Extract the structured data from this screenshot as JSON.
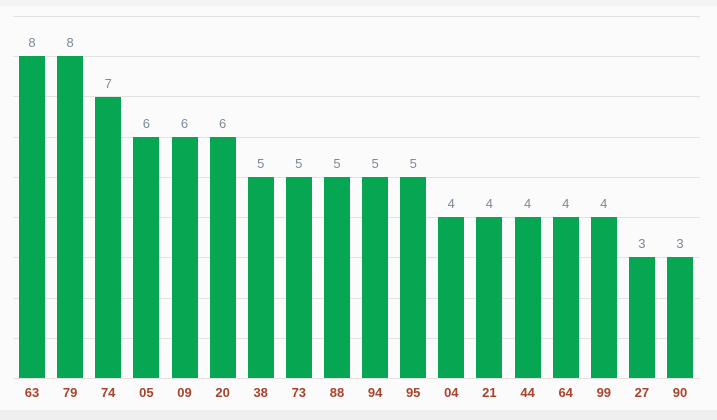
{
  "chart": {
    "bar_color": "#06a652",
    "value_label_color": "#7d8a98",
    "category_label_color": "#a8432d",
    "gridline_color": "#e2e2e2",
    "plot_background_color": "#fbfbfb",
    "outer_background_color": "#f3f3f3"
  },
  "chart_data": {
    "type": "bar",
    "categories": [
      "63",
      "79",
      "74",
      "05",
      "09",
      "20",
      "38",
      "73",
      "88",
      "94",
      "95",
      "04",
      "21",
      "44",
      "64",
      "99",
      "27",
      "90"
    ],
    "values": [
      8,
      8,
      7,
      6,
      6,
      6,
      5,
      5,
      5,
      5,
      5,
      4,
      4,
      4,
      4,
      4,
      3,
      3
    ],
    "title": "",
    "xlabel": "",
    "ylabel": "",
    "ylim": [
      0,
      9
    ],
    "grid": true,
    "gridline_count": 10,
    "value_labels_shown": true,
    "legend": "none"
  }
}
